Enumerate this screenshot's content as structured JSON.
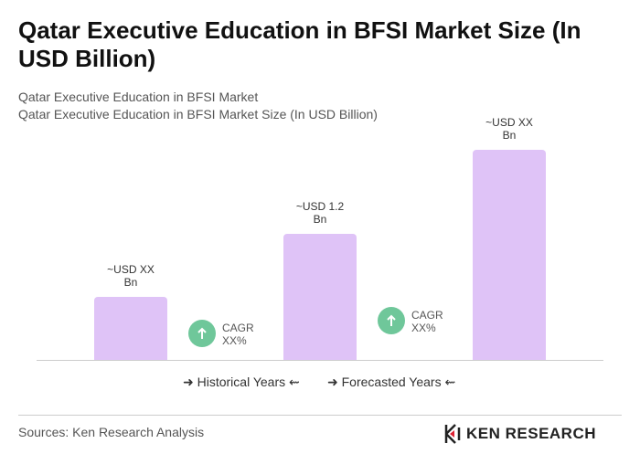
{
  "chart_data": {
    "type": "bar",
    "title": "Qatar Executive Education in BFSI Market Size (In USD Billion)",
    "subtitles": [
      "Qatar Executive Education in BFSI Market",
      "Qatar Executive Education in BFSI Market Size (In USD Billion)"
    ],
    "values": [
      0.6,
      1.2,
      2.0
    ],
    "value_labels": [
      "~USD XX Bn",
      "~USD 1.2 Bn",
      "~USD XX Bn"
    ],
    "color": "#dfc3f7",
    "annotations": [
      "CAGR XX%",
      "CAGR XX%"
    ],
    "legend": [
      "Historical Years",
      "Forecasted Years"
    ],
    "source": "Sources: Ken Research Analysis",
    "logo": "KEN RESEARCH"
  }
}
